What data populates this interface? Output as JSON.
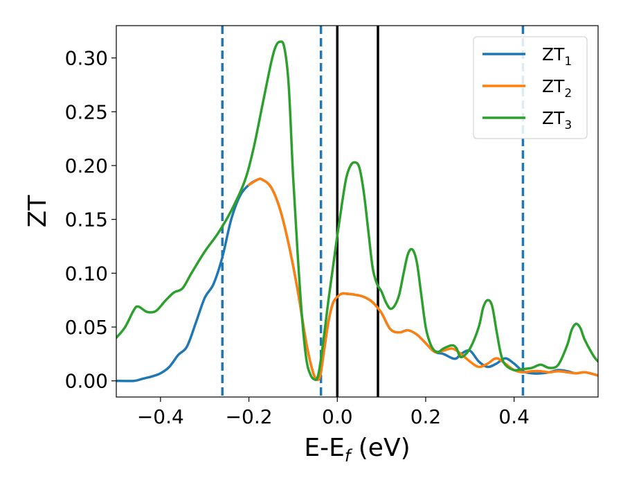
{
  "chart_data": {
    "type": "line",
    "xlabel": "E-E",
    "xlabel_sub": "f",
    "xlabel_unit": " (eV)",
    "ylabel": "ZT",
    "xlim": [
      -0.5,
      0.59
    ],
    "ylim": [
      -0.015,
      0.33
    ],
    "x_ticks": [
      {
        "value": -0.4,
        "label": "−0.4"
      },
      {
        "value": -0.2,
        "label": "−0.2"
      },
      {
        "value": 0.0,
        "label": "0.0"
      },
      {
        "value": 0.2,
        "label": "0.2"
      },
      {
        "value": 0.4,
        "label": "0.4"
      }
    ],
    "y_ticks": [
      {
        "value": 0.0,
        "label": "0.00"
      },
      {
        "value": 0.05,
        "label": "0.05"
      },
      {
        "value": 0.1,
        "label": "0.10"
      },
      {
        "value": 0.15,
        "label": "0.15"
      },
      {
        "value": 0.2,
        "label": "0.20"
      },
      {
        "value": 0.25,
        "label": "0.25"
      },
      {
        "value": 0.3,
        "label": "0.30"
      }
    ],
    "grid": false,
    "legend_position": "top-right",
    "vlines": [
      {
        "x": -0.26,
        "style": "dashed",
        "color": "#1f77b4"
      },
      {
        "x": -0.037,
        "style": "dashed",
        "color": "#1f77b4"
      },
      {
        "x": 0.0,
        "style": "solid",
        "color": "#000000"
      },
      {
        "x": 0.092,
        "style": "solid",
        "color": "#000000"
      },
      {
        "x": 0.42,
        "style": "dashed",
        "color": "#1f77b4"
      }
    ],
    "series": [
      {
        "name": "ZT",
        "subscript": "1",
        "color": "#1f77b4",
        "x": [
          -0.5,
          -0.46,
          -0.44,
          -0.42,
          -0.4,
          -0.38,
          -0.36,
          -0.34,
          -0.32,
          -0.3,
          -0.28,
          -0.26,
          -0.24,
          -0.22,
          -0.2,
          -0.18,
          -0.17,
          -0.15,
          -0.13,
          -0.11,
          -0.09,
          -0.07,
          -0.055,
          -0.045,
          -0.038,
          -0.03,
          -0.02,
          -0.01,
          0.0,
          0.01,
          0.02,
          0.04,
          0.06,
          0.08,
          0.1,
          0.12,
          0.14,
          0.16,
          0.18,
          0.2,
          0.22,
          0.24,
          0.26,
          0.27,
          0.28,
          0.3,
          0.32,
          0.34,
          0.36,
          0.38,
          0.4,
          0.42,
          0.44,
          0.46,
          0.48,
          0.5,
          0.52,
          0.54,
          0.56,
          0.59
        ],
        "y": [
          0.0,
          0.0,
          0.002,
          0.004,
          0.007,
          0.013,
          0.024,
          0.032,
          0.054,
          0.077,
          0.09,
          0.115,
          0.15,
          0.172,
          0.182,
          0.187,
          0.187,
          0.18,
          0.16,
          0.127,
          0.085,
          0.035,
          0.008,
          0.001,
          0.006,
          0.028,
          0.055,
          0.072,
          0.078,
          0.081,
          0.081,
          0.08,
          0.078,
          0.073,
          0.063,
          0.048,
          0.045,
          0.047,
          0.043,
          0.035,
          0.027,
          0.025,
          0.021,
          0.021,
          0.025,
          0.028,
          0.018,
          0.013,
          0.016,
          0.021,
          0.016,
          0.009,
          0.007,
          0.007,
          0.008,
          0.01,
          0.009,
          0.007,
          0.008,
          0.005
        ]
      },
      {
        "name": "ZT",
        "subscript": "2",
        "color": "#ff7f0e",
        "x": [
          -0.2,
          -0.18,
          -0.17,
          -0.15,
          -0.13,
          -0.11,
          -0.09,
          -0.07,
          -0.055,
          -0.045,
          -0.038,
          -0.03,
          -0.02,
          -0.01,
          0.0,
          0.01,
          0.02,
          0.04,
          0.06,
          0.08,
          0.1,
          0.12,
          0.14,
          0.16,
          0.18,
          0.2,
          0.22,
          0.24,
          0.26,
          0.28,
          0.3,
          0.32,
          0.34,
          0.36,
          0.38,
          0.4,
          0.42,
          0.44,
          0.46,
          0.48,
          0.5,
          0.52,
          0.54,
          0.56,
          0.59
        ],
        "y": [
          0.182,
          0.187,
          0.187,
          0.18,
          0.16,
          0.127,
          0.085,
          0.035,
          0.008,
          0.001,
          0.006,
          0.028,
          0.055,
          0.072,
          0.078,
          0.081,
          0.081,
          0.08,
          0.078,
          0.073,
          0.063,
          0.048,
          0.045,
          0.047,
          0.043,
          0.035,
          0.027,
          0.028,
          0.03,
          0.025,
          0.018,
          0.013,
          0.016,
          0.021,
          0.016,
          0.01,
          0.008,
          0.009,
          0.009,
          0.008,
          0.009,
          0.008,
          0.007,
          0.008,
          0.005
        ]
      },
      {
        "name": "ZT",
        "subscript": "3",
        "color": "#2ca02c",
        "x": [
          -0.5,
          -0.48,
          -0.46,
          -0.45,
          -0.43,
          -0.41,
          -0.39,
          -0.37,
          -0.35,
          -0.33,
          -0.3,
          -0.27,
          -0.24,
          -0.21,
          -0.19,
          -0.17,
          -0.15,
          -0.14,
          -0.13,
          -0.12,
          -0.11,
          -0.1,
          -0.09,
          -0.08,
          -0.07,
          -0.06,
          -0.05,
          -0.045,
          -0.04,
          -0.03,
          -0.02,
          -0.01,
          0.0,
          0.01,
          0.02,
          0.03,
          0.04,
          0.05,
          0.06,
          0.07,
          0.08,
          0.09,
          0.1,
          0.11,
          0.12,
          0.13,
          0.14,
          0.15,
          0.16,
          0.17,
          0.18,
          0.19,
          0.2,
          0.21,
          0.22,
          0.23,
          0.24,
          0.26,
          0.27,
          0.28,
          0.3,
          0.32,
          0.33,
          0.34,
          0.35,
          0.36,
          0.37,
          0.38,
          0.4,
          0.42,
          0.44,
          0.46,
          0.48,
          0.5,
          0.52,
          0.53,
          0.54,
          0.55,
          0.56,
          0.58,
          0.59
        ],
        "y": [
          0.04,
          0.05,
          0.066,
          0.069,
          0.064,
          0.065,
          0.074,
          0.082,
          0.086,
          0.1,
          0.12,
          0.137,
          0.158,
          0.185,
          0.215,
          0.255,
          0.295,
          0.31,
          0.315,
          0.31,
          0.275,
          0.19,
          0.12,
          0.06,
          0.02,
          0.005,
          0.001,
          0.003,
          0.012,
          0.042,
          0.075,
          0.105,
          0.135,
          0.163,
          0.188,
          0.2,
          0.203,
          0.198,
          0.175,
          0.14,
          0.105,
          0.09,
          0.083,
          0.073,
          0.067,
          0.07,
          0.08,
          0.1,
          0.118,
          0.122,
          0.11,
          0.08,
          0.05,
          0.035,
          0.028,
          0.027,
          0.03,
          0.033,
          0.03,
          0.022,
          0.03,
          0.05,
          0.068,
          0.075,
          0.07,
          0.047,
          0.025,
          0.015,
          0.01,
          0.011,
          0.012,
          0.015,
          0.012,
          0.015,
          0.033,
          0.047,
          0.053,
          0.049,
          0.038,
          0.023,
          0.018
        ]
      }
    ]
  }
}
